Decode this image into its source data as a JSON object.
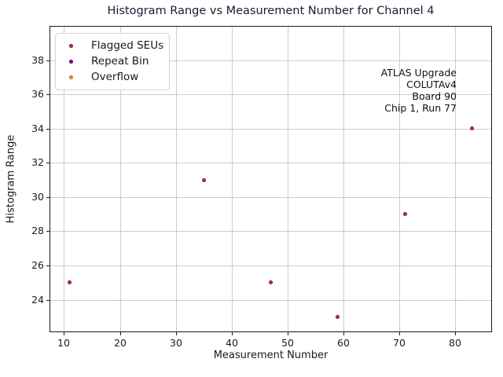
{
  "figure": {
    "title_color": "#1a1a33"
  },
  "annotation": {
    "lines": [
      "ATLAS Upgrade",
      "COLUTAv4",
      "Board 90",
      "Chip 1, Run 77"
    ]
  },
  "chart_data": {
    "type": "scatter",
    "title": "Histogram Range vs Measurement Number for Channel 4",
    "xlabel": "Measurement Number",
    "ylabel": "Histogram Range",
    "xlim": [
      7.4,
      86.6
    ],
    "ylim": [
      22.1,
      40.0
    ],
    "xticks": [
      10,
      20,
      30,
      40,
      50,
      60,
      70,
      80
    ],
    "yticks": [
      24,
      26,
      28,
      30,
      32,
      34,
      36,
      38
    ],
    "grid": true,
    "grid_color": "#cccccc",
    "legend_position": "upper-left",
    "series": [
      {
        "name": "Flagged SEUs",
        "color": "#cf2e35",
        "edge_color": "#7c1a1f",
        "points": [
          [
            11,
            25
          ],
          [
            35,
            31
          ],
          [
            47,
            25
          ],
          [
            59,
            23
          ],
          [
            71,
            29
          ],
          [
            83,
            34
          ]
        ]
      },
      {
        "name": "Repeat Bin",
        "color": "#800f85",
        "edge_color": "#4d0950",
        "points": []
      },
      {
        "name": "Overflow",
        "color": "#f9961e",
        "edge_color": "#b86a10",
        "points": []
      }
    ]
  }
}
